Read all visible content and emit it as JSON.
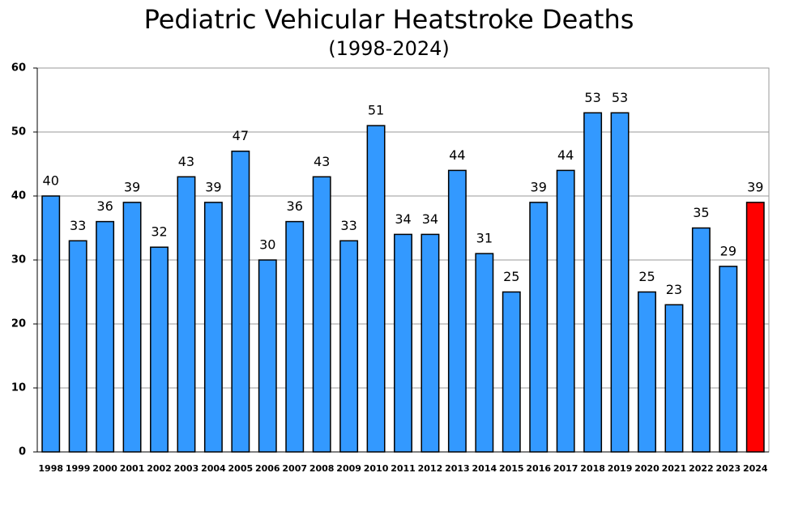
{
  "chart_data": {
    "type": "bar",
    "title": "Pediatric Vehicular Heatstroke Deaths",
    "subtitle": "(1998-2024)",
    "categories": [
      "1998",
      "1999",
      "2000",
      "2001",
      "2002",
      "2003",
      "2004",
      "2005",
      "2006",
      "2007",
      "2008",
      "2009",
      "2010",
      "2011",
      "2012",
      "2013",
      "2014",
      "2015",
      "2016",
      "2017",
      "2018",
      "2019",
      "2020",
      "2021",
      "2022",
      "2023",
      "2024"
    ],
    "values": [
      40,
      33,
      36,
      39,
      32,
      43,
      39,
      47,
      30,
      36,
      43,
      33,
      51,
      34,
      34,
      44,
      31,
      25,
      39,
      44,
      53,
      53,
      25,
      23,
      35,
      29,
      39
    ],
    "colors": [
      "#3399ff",
      "#3399ff",
      "#3399ff",
      "#3399ff",
      "#3399ff",
      "#3399ff",
      "#3399ff",
      "#3399ff",
      "#3399ff",
      "#3399ff",
      "#3399ff",
      "#3399ff",
      "#3399ff",
      "#3399ff",
      "#3399ff",
      "#3399ff",
      "#3399ff",
      "#3399ff",
      "#3399ff",
      "#3399ff",
      "#3399ff",
      "#3399ff",
      "#3399ff",
      "#3399ff",
      "#3399ff",
      "#3399ff",
      "#ff0000"
    ],
    "ylim": [
      0,
      60
    ],
    "yticks": [
      0,
      10,
      20,
      30,
      40,
      50,
      60
    ],
    "grid": true
  }
}
